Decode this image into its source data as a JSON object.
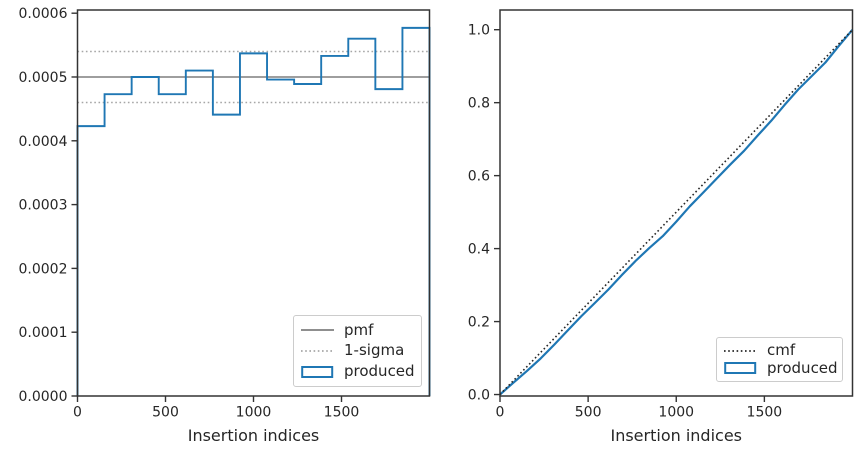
{
  "style": {
    "background": "#ffffff",
    "axis_color": "#333333",
    "text_color": "#262626",
    "blue": "#1f77b4",
    "gray": "#7f7f7f",
    "light_gray": "#a6a6a6",
    "near_black": "#262626",
    "legend_border": "#cccccc"
  },
  "chart_data": [
    {
      "type": "bar",
      "subtype": "step-histogram",
      "title": "",
      "xlabel": "Insertion indices",
      "ylabel": "",
      "xlim": [
        0,
        2000
      ],
      "ylim": [
        0,
        0.000605
      ],
      "grid": false,
      "xticks": [
        {
          "v": 0,
          "label": "0"
        },
        {
          "v": 500,
          "label": "500"
        },
        {
          "v": 1000,
          "label": "1000"
        },
        {
          "v": 1500,
          "label": "1500"
        }
      ],
      "yticks": [
        {
          "v": 0.0,
          "label": "0.0000"
        },
        {
          "v": 0.0001,
          "label": "0.0001"
        },
        {
          "v": 0.0002,
          "label": "0.0002"
        },
        {
          "v": 0.0003,
          "label": "0.0003"
        },
        {
          "v": 0.0004,
          "label": "0.0004"
        },
        {
          "v": 0.0005,
          "label": "0.0005"
        },
        {
          "v": 0.0006,
          "label": "0.0006"
        }
      ],
      "legend": {
        "position": "lower right",
        "entries": [
          {
            "label": "pmf",
            "swatch": "line",
            "linestyle": "solid",
            "color": "#7f7f7f"
          },
          {
            "label": "1-sigma",
            "swatch": "line",
            "linestyle": "dotted",
            "color": "#a6a6a6"
          },
          {
            "label": "produced",
            "swatch": "rect",
            "linestyle": "solid",
            "color": "#1f77b4"
          }
        ]
      },
      "series": [
        {
          "name": "pmf",
          "type": "hlines",
          "y": [
            0.0005
          ],
          "color": "#7f7f7f",
          "linestyle": "solid",
          "width": 1.6
        },
        {
          "name": "1-sigma",
          "type": "hlines",
          "y": [
            0.00054,
            0.00046
          ],
          "color": "#a6a6a6",
          "linestyle": "dotted",
          "width": 1.5
        },
        {
          "name": "produced",
          "type": "step",
          "color": "#1f77b4",
          "linestyle": "solid",
          "width": 1.9,
          "bin_edges": [
            0,
            153.8,
            307.7,
            461.5,
            615.4,
            769.2,
            923.1,
            1076.9,
            1230.8,
            1384.6,
            1538.5,
            1692.3,
            1846.2,
            2000
          ],
          "values": [
            0.000423,
            0.000473,
            0.0005,
            0.000473,
            0.00051,
            0.000441,
            0.000537,
            0.000496,
            0.000489,
            0.000533,
            0.00056,
            0.000481,
            0.000577
          ]
        }
      ]
    },
    {
      "type": "line",
      "subtype": "cdf",
      "title": "",
      "xlabel": "Insertion indices",
      "ylabel": "",
      "xlim": [
        0,
        2000
      ],
      "ylim": [
        -0.004,
        1.054
      ],
      "grid": false,
      "xticks": [
        {
          "v": 0,
          "label": "0"
        },
        {
          "v": 500,
          "label": "500"
        },
        {
          "v": 1000,
          "label": "1000"
        },
        {
          "v": 1500,
          "label": "1500"
        }
      ],
      "yticks": [
        {
          "v": 0.0,
          "label": "0.0"
        },
        {
          "v": 0.2,
          "label": "0.2"
        },
        {
          "v": 0.4,
          "label": "0.4"
        },
        {
          "v": 0.6,
          "label": "0.6"
        },
        {
          "v": 0.8,
          "label": "0.8"
        },
        {
          "v": 1.0,
          "label": "1.0"
        }
      ],
      "legend": {
        "position": "lower right",
        "entries": [
          {
            "label": "cmf",
            "swatch": "line",
            "linestyle": "dotted",
            "color": "#262626"
          },
          {
            "label": "produced",
            "swatch": "rect",
            "linestyle": "solid",
            "color": "#1f77b4"
          }
        ]
      },
      "series": [
        {
          "name": "produced",
          "type": "line",
          "color": "#1f77b4",
          "linestyle": "solid",
          "width": 2.2,
          "x": [
            0,
            80,
            154,
            231,
            308,
            385,
            462,
            540,
            615,
            692,
            769,
            846,
            923,
            1000,
            1077,
            1154,
            1231,
            1308,
            1385,
            1462,
            1538,
            1615,
            1692,
            1769,
            1846,
            1923,
            2000
          ],
          "y": [
            0.0,
            0.034,
            0.065,
            0.099,
            0.137,
            0.176,
            0.215,
            0.252,
            0.288,
            0.328,
            0.366,
            0.401,
            0.434,
            0.474,
            0.516,
            0.554,
            0.593,
            0.631,
            0.668,
            0.71,
            0.75,
            0.794,
            0.836,
            0.873,
            0.91,
            0.956,
            1.0
          ]
        },
        {
          "name": "cmf",
          "type": "line",
          "color": "#262626",
          "linestyle": "dotted",
          "width": 1.6,
          "x": [
            0,
            2000
          ],
          "y": [
            0,
            1
          ]
        }
      ]
    }
  ]
}
